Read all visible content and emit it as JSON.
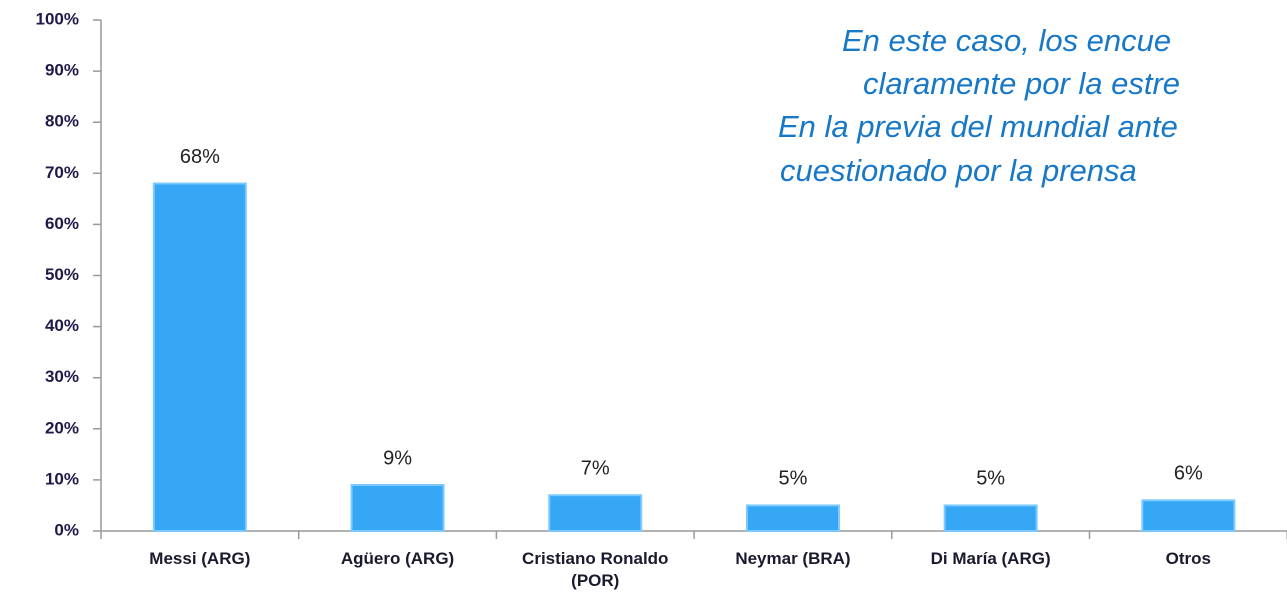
{
  "chart_data": {
    "type": "bar",
    "categories": [
      "Messi (ARG)",
      "Agüero (ARG)",
      "Cristiano Ronaldo (POR)",
      "Neymar (BRA)",
      "Di María (ARG)",
      "Otros"
    ],
    "values": [
      68,
      9,
      7,
      5,
      5,
      6
    ],
    "value_labels": [
      "68%",
      "9%",
      "7%",
      "5%",
      "5%",
      "6%"
    ],
    "color": "#35a7f5",
    "ylim": [
      0,
      100
    ],
    "yticks": [
      {
        "value": 0,
        "label": "0%"
      },
      {
        "value": 10,
        "label": "10%"
      },
      {
        "value": 20,
        "label": "20%"
      },
      {
        "value": 30,
        "label": "30%"
      },
      {
        "value": 40,
        "label": "40%"
      },
      {
        "value": 50,
        "label": "50%"
      },
      {
        "value": 60,
        "label": "60%"
      },
      {
        "value": 70,
        "label": "70%"
      },
      {
        "value": 80,
        "label": "80%"
      },
      {
        "value": 90,
        "label": "90%"
      },
      {
        "value": 100,
        "label": "100%"
      }
    ],
    "grid": false,
    "annotation": [
      "En este caso, los encue",
      "claramente por la estre",
      "En la previa del mundial ante",
      "cuestionado por la prensa"
    ]
  }
}
